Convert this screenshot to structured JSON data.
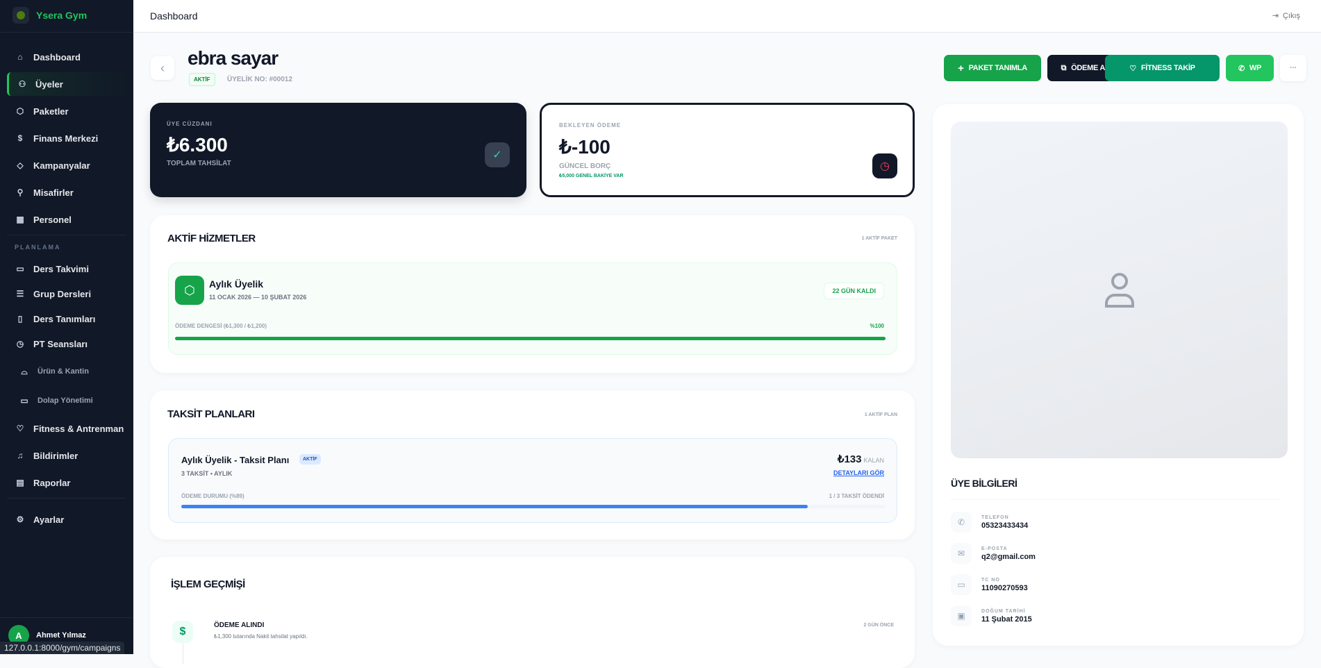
{
  "brand": {
    "name": "Ysera Gym"
  },
  "sidebar": {
    "items": [
      {
        "label": "Dashboard",
        "icon": "home-icon"
      },
      {
        "label": "Üyeler",
        "icon": "users-icon",
        "active": true
      },
      {
        "label": "Paketler",
        "icon": "box-icon"
      },
      {
        "label": "Finans Merkezi",
        "icon": "dollar-icon"
      },
      {
        "label": "Kampanyalar",
        "icon": "tag-icon"
      },
      {
        "label": "Misafirler",
        "icon": "user-plus-icon"
      },
      {
        "label": "Personel",
        "icon": "building-icon"
      }
    ],
    "section": "PLANLAMA",
    "planning": [
      {
        "label": "Ders Takvimi"
      },
      {
        "label": "Grup Dersleri"
      },
      {
        "label": "Ders Tanımları"
      },
      {
        "label": "PT Seansları"
      },
      {
        "label": "Ürün & Kantin"
      },
      {
        "label": "Dolap Yönetimi"
      },
      {
        "label": "Fitness & Antrenman"
      },
      {
        "label": "Bildirimler"
      },
      {
        "label": "Raporlar"
      }
    ],
    "settings": "Ayarlar",
    "user": {
      "initial": "A",
      "name": "Ahmet Yılmaz"
    }
  },
  "statusbar": "127.0.0.1:8000/gym/campaigns",
  "header": {
    "title": "Dashboard",
    "logout": "Çıkış"
  },
  "member": {
    "name": "ebra sayar",
    "status": "AKTİF",
    "number": "ÜYELİK NO: #00012"
  },
  "actions": {
    "package": "PAKET TANIMLA",
    "payment": "ÖDEME AL",
    "fitness": "FİTNESS TAKİP",
    "wp": "WP",
    "more": "···"
  },
  "wallet": {
    "label": "ÜYE CÜZDANI",
    "amount": "₺6.300",
    "sub": "TOPLAM TAHSİLAT"
  },
  "pending": {
    "label": "BEKLEYEN ÖDEME",
    "amount": "₺-100",
    "sub": "GÜNCEL BORÇ",
    "note": "₺5,000 GENEL BAKİYE VAR"
  },
  "services": {
    "title": "AKTİF HİZMETLER",
    "count": "1 AKTİF PAKET",
    "item": {
      "name": "Aylık Üyelik",
      "dates": "11 OCAK 2026 — 10 ŞUBAT 2026",
      "remaining": "22 GÜN KALDI",
      "balance_label": "ÖDEME DENGESİ (₺1,300 / ₺1,200)",
      "percent_label": "%100",
      "progress": 100
    }
  },
  "installments": {
    "title": "TAKSİT PLANLARI",
    "count": "1 AKTİF PLAN",
    "item": {
      "name": "Aylık Üyelik - Taksit Planı",
      "badge": "AKTİF",
      "meta": "3 TAKSİT • AYLIK",
      "amount": "₺133",
      "amount_suffix": "KALAN",
      "details": "DETAYLARI GÖR",
      "status_label": "ÖDEME DURUMU (%89)",
      "paid": "1 / 3 TAKSİT ÖDENDİ",
      "progress": 89
    }
  },
  "history": {
    "title": "İŞLEM GEÇMİŞİ",
    "items": [
      {
        "title": "ÖDEME ALINDI",
        "desc": "₺1,300 tutarında Nakit tahsilat yapıldı.",
        "time": "2 GÜN ÖNCE"
      }
    ]
  },
  "info": {
    "title": "ÜYE BİLGİLERİ",
    "rows": [
      {
        "label": "TELEFON",
        "value": "05323433434"
      },
      {
        "label": "E-POSTA",
        "value": "q2@gmail.com"
      },
      {
        "label": "TC NO",
        "value": "11090270593"
      },
      {
        "label": "DOĞUM TARİHİ",
        "value": "11 Şubat 2015"
      }
    ]
  },
  "colors": {
    "primary": "#16a34a",
    "dark": "#111827",
    "teal": "#059669",
    "wp": "#22c55e",
    "blue": "#3b82f6",
    "danger": "#f43f5e"
  }
}
